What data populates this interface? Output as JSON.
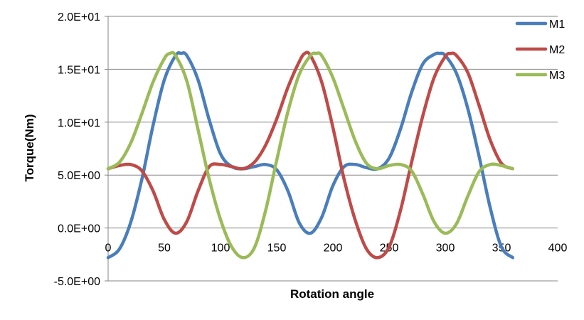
{
  "chart_data": {
    "type": "line",
    "title": "",
    "xlabel": "Rotation angle",
    "ylabel": "Torque(Nm)",
    "xlim": [
      0,
      400
    ],
    "ylim": [
      -5,
      20
    ],
    "x_ticks": [
      0,
      50,
      100,
      150,
      200,
      250,
      300,
      350,
      400
    ],
    "x_tick_labels": [
      "0",
      "50",
      "100",
      "150",
      "200",
      "250",
      "300",
      "350",
      "400"
    ],
    "y_ticks": [
      -5,
      0,
      5,
      10,
      15,
      20
    ],
    "y_tick_labels": [
      "-5.0E+00",
      "0.0E+00",
      "5.0E+00",
      "1.0E+01",
      "1.5E+01",
      "2.0E+01"
    ],
    "grid": "horizontal",
    "legend_position": "top-right",
    "series": [
      {
        "name": "M1",
        "color": "#4a7ebb",
        "x": [
          0,
          10,
          20,
          30,
          40,
          50,
          60,
          65,
          70,
          80,
          90,
          100,
          110,
          120,
          130,
          140,
          150,
          160,
          170,
          180,
          190,
          200,
          210,
          220,
          230,
          240,
          250,
          260,
          270,
          280,
          290,
          295,
          300,
          310,
          320,
          330,
          340,
          350,
          360
        ],
        "values": [
          -2.8,
          -2.0,
          0.5,
          4.6,
          9.7,
          14.0,
          16.3,
          16.5,
          16.3,
          14.0,
          10.2,
          7.0,
          5.8,
          5.6,
          5.8,
          6.0,
          5.5,
          3.5,
          0.5,
          -0.5,
          1.0,
          4.0,
          5.8,
          6.0,
          5.7,
          5.6,
          6.6,
          9.3,
          12.8,
          15.5,
          16.4,
          16.5,
          16.3,
          14.6,
          11.3,
          6.8,
          1.9,
          -1.8,
          -2.8
        ]
      },
      {
        "name": "M2",
        "color": "#be4b48",
        "x": [
          0,
          10,
          20,
          30,
          40,
          50,
          60,
          70,
          80,
          90,
          100,
          110,
          120,
          130,
          140,
          150,
          160,
          170,
          175,
          180,
          190,
          200,
          210,
          220,
          230,
          240,
          250,
          260,
          270,
          280,
          290,
          300,
          305,
          310,
          320,
          330,
          340,
          350,
          360
        ],
        "values": [
          5.6,
          5.9,
          6.0,
          5.4,
          3.5,
          0.8,
          -0.5,
          0.6,
          3.5,
          5.8,
          6.0,
          5.8,
          5.6,
          6.2,
          7.8,
          10.3,
          13.3,
          15.7,
          16.5,
          16.3,
          13.8,
          9.5,
          4.6,
          0.7,
          -2.0,
          -2.8,
          -1.8,
          1.6,
          6.2,
          10.6,
          14.2,
          16.2,
          16.5,
          16.3,
          14.7,
          11.6,
          8.3,
          6.1,
          5.6
        ]
      },
      {
        "name": "M3",
        "color": "#9bbb59",
        "x": [
          0,
          10,
          20,
          30,
          40,
          50,
          55,
          60,
          70,
          80,
          90,
          100,
          110,
          120,
          130,
          140,
          150,
          160,
          170,
          180,
          185,
          190,
          200,
          210,
          220,
          230,
          240,
          250,
          260,
          270,
          280,
          290,
          300,
          310,
          320,
          330,
          340,
          350,
          360
        ],
        "values": [
          5.6,
          6.2,
          8.0,
          10.8,
          13.8,
          16.0,
          16.5,
          16.3,
          13.9,
          9.3,
          4.6,
          0.8,
          -1.8,
          -2.8,
          -1.9,
          1.6,
          6.4,
          11.0,
          14.5,
          16.3,
          16.5,
          16.3,
          14.2,
          11.2,
          8.2,
          6.1,
          5.6,
          5.9,
          6.0,
          5.4,
          3.2,
          0.6,
          -0.5,
          0.4,
          3.0,
          5.3,
          6.0,
          5.9,
          5.6
        ]
      }
    ]
  }
}
